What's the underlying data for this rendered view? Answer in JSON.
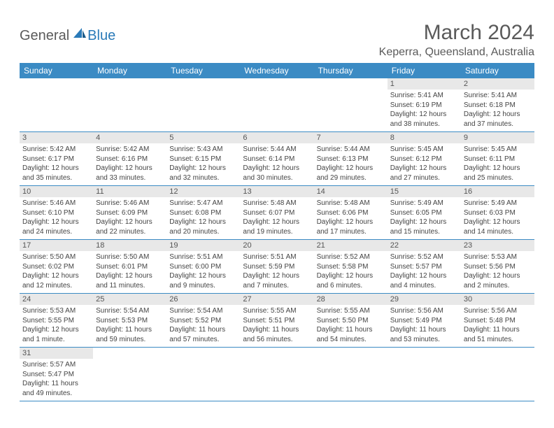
{
  "logo": {
    "general": "General",
    "blue": "Blue"
  },
  "title": "March 2024",
  "location": "Keperra, Queensland, Australia",
  "colors": {
    "header_bg": "#3b8bc4",
    "header_text": "#ffffff",
    "daynum_bg": "#e8e8e8",
    "row_border": "#3b8bc4",
    "text": "#444444",
    "title_text": "#5a5a5a"
  },
  "weekdays": [
    "Sunday",
    "Monday",
    "Tuesday",
    "Wednesday",
    "Thursday",
    "Friday",
    "Saturday"
  ],
  "weeks": [
    [
      null,
      null,
      null,
      null,
      null,
      {
        "n": "1",
        "sr": "5:41 AM",
        "ss": "6:19 PM",
        "dl": "12 hours and 38 minutes."
      },
      {
        "n": "2",
        "sr": "5:41 AM",
        "ss": "6:18 PM",
        "dl": "12 hours and 37 minutes."
      }
    ],
    [
      {
        "n": "3",
        "sr": "5:42 AM",
        "ss": "6:17 PM",
        "dl": "12 hours and 35 minutes."
      },
      {
        "n": "4",
        "sr": "5:42 AM",
        "ss": "6:16 PM",
        "dl": "12 hours and 33 minutes."
      },
      {
        "n": "5",
        "sr": "5:43 AM",
        "ss": "6:15 PM",
        "dl": "12 hours and 32 minutes."
      },
      {
        "n": "6",
        "sr": "5:44 AM",
        "ss": "6:14 PM",
        "dl": "12 hours and 30 minutes."
      },
      {
        "n": "7",
        "sr": "5:44 AM",
        "ss": "6:13 PM",
        "dl": "12 hours and 29 minutes."
      },
      {
        "n": "8",
        "sr": "5:45 AM",
        "ss": "6:12 PM",
        "dl": "12 hours and 27 minutes."
      },
      {
        "n": "9",
        "sr": "5:45 AM",
        "ss": "6:11 PM",
        "dl": "12 hours and 25 minutes."
      }
    ],
    [
      {
        "n": "10",
        "sr": "5:46 AM",
        "ss": "6:10 PM",
        "dl": "12 hours and 24 minutes."
      },
      {
        "n": "11",
        "sr": "5:46 AM",
        "ss": "6:09 PM",
        "dl": "12 hours and 22 minutes."
      },
      {
        "n": "12",
        "sr": "5:47 AM",
        "ss": "6:08 PM",
        "dl": "12 hours and 20 minutes."
      },
      {
        "n": "13",
        "sr": "5:48 AM",
        "ss": "6:07 PM",
        "dl": "12 hours and 19 minutes."
      },
      {
        "n": "14",
        "sr": "5:48 AM",
        "ss": "6:06 PM",
        "dl": "12 hours and 17 minutes."
      },
      {
        "n": "15",
        "sr": "5:49 AM",
        "ss": "6:05 PM",
        "dl": "12 hours and 15 minutes."
      },
      {
        "n": "16",
        "sr": "5:49 AM",
        "ss": "6:03 PM",
        "dl": "12 hours and 14 minutes."
      }
    ],
    [
      {
        "n": "17",
        "sr": "5:50 AM",
        "ss": "6:02 PM",
        "dl": "12 hours and 12 minutes."
      },
      {
        "n": "18",
        "sr": "5:50 AM",
        "ss": "6:01 PM",
        "dl": "12 hours and 11 minutes."
      },
      {
        "n": "19",
        "sr": "5:51 AM",
        "ss": "6:00 PM",
        "dl": "12 hours and 9 minutes."
      },
      {
        "n": "20",
        "sr": "5:51 AM",
        "ss": "5:59 PM",
        "dl": "12 hours and 7 minutes."
      },
      {
        "n": "21",
        "sr": "5:52 AM",
        "ss": "5:58 PM",
        "dl": "12 hours and 6 minutes."
      },
      {
        "n": "22",
        "sr": "5:52 AM",
        "ss": "5:57 PM",
        "dl": "12 hours and 4 minutes."
      },
      {
        "n": "23",
        "sr": "5:53 AM",
        "ss": "5:56 PM",
        "dl": "12 hours and 2 minutes."
      }
    ],
    [
      {
        "n": "24",
        "sr": "5:53 AM",
        "ss": "5:55 PM",
        "dl": "12 hours and 1 minute."
      },
      {
        "n": "25",
        "sr": "5:54 AM",
        "ss": "5:53 PM",
        "dl": "11 hours and 59 minutes."
      },
      {
        "n": "26",
        "sr": "5:54 AM",
        "ss": "5:52 PM",
        "dl": "11 hours and 57 minutes."
      },
      {
        "n": "27",
        "sr": "5:55 AM",
        "ss": "5:51 PM",
        "dl": "11 hours and 56 minutes."
      },
      {
        "n": "28",
        "sr": "5:55 AM",
        "ss": "5:50 PM",
        "dl": "11 hours and 54 minutes."
      },
      {
        "n": "29",
        "sr": "5:56 AM",
        "ss": "5:49 PM",
        "dl": "11 hours and 53 minutes."
      },
      {
        "n": "30",
        "sr": "5:56 AM",
        "ss": "5:48 PM",
        "dl": "11 hours and 51 minutes."
      }
    ],
    [
      {
        "n": "31",
        "sr": "5:57 AM",
        "ss": "5:47 PM",
        "dl": "11 hours and 49 minutes."
      },
      null,
      null,
      null,
      null,
      null,
      null
    ]
  ],
  "labels": {
    "sunrise": "Sunrise:",
    "sunset": "Sunset:",
    "daylight": "Daylight:"
  }
}
